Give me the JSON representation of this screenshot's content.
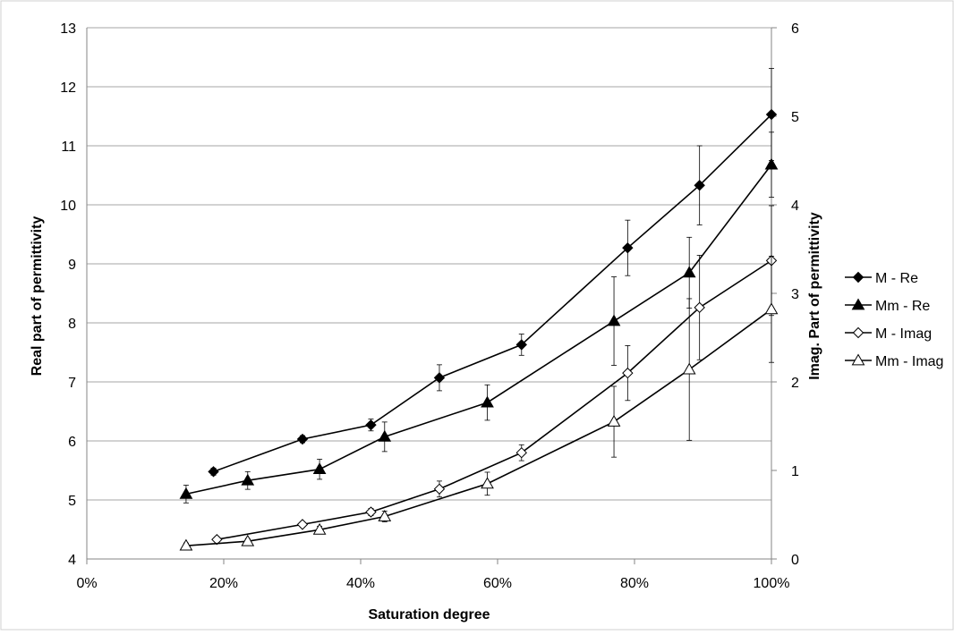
{
  "chart_data": {
    "type": "line",
    "xlabel": "Saturation degree",
    "ylabel": "Real part of permittivity",
    "y2label": "Imag. Part of permittivity",
    "xlim": [
      0,
      100
    ],
    "ylim": [
      4,
      13
    ],
    "y2lim": [
      0,
      6
    ],
    "x_ticks": [
      "0%",
      "20%",
      "40%",
      "60%",
      "80%",
      "100%"
    ],
    "y_ticks": [
      "4",
      "5",
      "6",
      "7",
      "8",
      "9",
      "10",
      "11",
      "12",
      "13"
    ],
    "y2_ticks": [
      "0",
      "1",
      "2",
      "3",
      "4",
      "5",
      "6"
    ],
    "grid": "horizontal",
    "legend_position": "right",
    "series": [
      {
        "name": "M - Re",
        "axis": "left",
        "marker": "diamond",
        "filled": true,
        "x": [
          18.5,
          31.5,
          41.5,
          51.5,
          63.5,
          79,
          89.5,
          100
        ],
        "y": [
          5.48,
          6.03,
          6.27,
          7.07,
          7.63,
          9.27,
          10.33,
          11.53
        ],
        "err": [
          0.06,
          0.06,
          0.1,
          0.22,
          0.18,
          0.47,
          0.67,
          0.78
        ]
      },
      {
        "name": "Mm - Re",
        "axis": "left",
        "marker": "triangle",
        "filled": true,
        "x": [
          14.5,
          23.5,
          34,
          43.5,
          58.5,
          77,
          88,
          100
        ],
        "y": [
          5.1,
          5.33,
          5.52,
          6.07,
          6.65,
          8.03,
          8.85,
          10.68
        ],
        "err": [
          0.15,
          0.15,
          0.17,
          0.25,
          0.3,
          0.75,
          0.6,
          0.55
        ]
      },
      {
        "name": "M - Imag",
        "axis": "right",
        "marker": "diamond",
        "filled": false,
        "x": [
          19,
          31.5,
          41.5,
          51.5,
          63.5,
          79,
          89.5,
          100
        ],
        "y": [
          0.22,
          0.39,
          0.53,
          0.79,
          1.2,
          2.1,
          2.84,
          3.37
        ],
        "err": [
          0.03,
          0.03,
          0.04,
          0.09,
          0.09,
          0.31,
          0.59,
          0.62
        ]
      },
      {
        "name": "Mm - Imag",
        "axis": "right",
        "marker": "triangle",
        "filled": false,
        "x": [
          14.5,
          23.5,
          34,
          43.5,
          58.5,
          77,
          88,
          100
        ],
        "y": [
          0.15,
          0.2,
          0.33,
          0.48,
          0.85,
          1.55,
          2.14,
          2.82
        ],
        "err": [
          0.03,
          0.03,
          0.04,
          0.06,
          0.13,
          0.4,
          0.8,
          0.6
        ]
      }
    ]
  }
}
